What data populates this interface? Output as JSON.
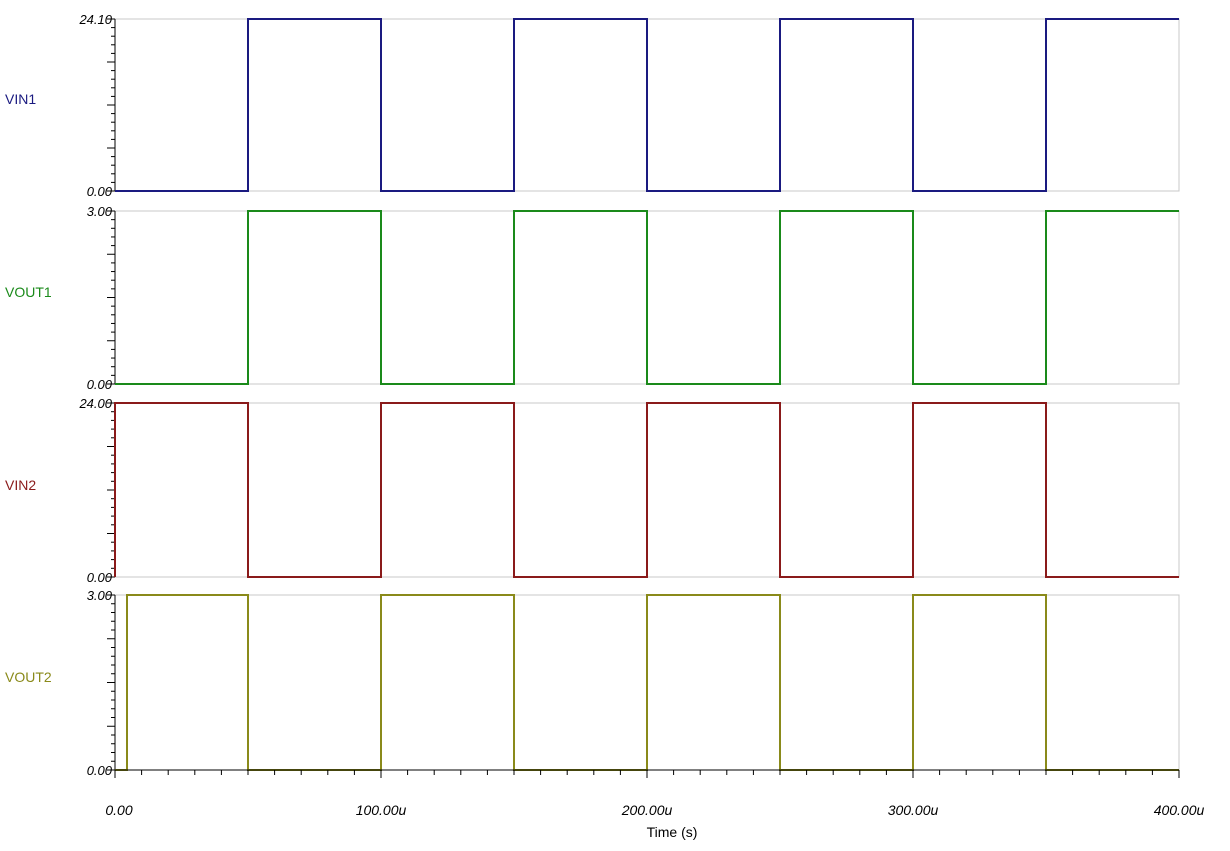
{
  "chart_data": {
    "type": "line",
    "xlabel": "Time (s)",
    "x_ticks": [
      "0.00",
      "100.00u",
      "200.00u",
      "300.00u",
      "400.00u"
    ],
    "xlim": [
      0,
      400
    ],
    "x_unit": "us",
    "series": [
      {
        "name": "VIN1",
        "color": "#1a1a80",
        "ylim": [
          0,
          24.1
        ],
        "y_ticks": [
          "24.10",
          "0.00"
        ],
        "x": [
          0,
          50,
          50,
          100,
          100,
          150,
          150,
          200,
          200,
          250,
          250,
          300,
          300,
          350,
          350,
          400
        ],
        "y": [
          0,
          0,
          24.1,
          24.1,
          0,
          0,
          24.1,
          24.1,
          0,
          0,
          24.1,
          24.1,
          0,
          0,
          24.1,
          24.1
        ]
      },
      {
        "name": "VOUT1",
        "color": "#1a8a1a",
        "ylim": [
          0,
          3
        ],
        "y_ticks": [
          "3.00",
          "0.00"
        ],
        "x": [
          0,
          50,
          50,
          100,
          100,
          150,
          150,
          200,
          200,
          250,
          250,
          300,
          300,
          350,
          350,
          400
        ],
        "y": [
          0,
          0,
          3,
          3,
          0,
          0,
          3,
          3,
          0,
          0,
          3,
          3,
          0,
          0,
          3,
          3
        ]
      },
      {
        "name": "VIN2",
        "color": "#8a1a1a",
        "ylim": [
          0,
          24
        ],
        "y_ticks": [
          "24.00",
          "0.00"
        ],
        "x": [
          0,
          0,
          50,
          50,
          100,
          100,
          150,
          150,
          200,
          200,
          250,
          250,
          300,
          300,
          350,
          350,
          400
        ],
        "y": [
          0,
          24,
          24,
          0,
          0,
          24,
          24,
          0,
          0,
          24,
          24,
          0,
          0,
          24,
          24,
          0,
          0
        ]
      },
      {
        "name": "VOUT2",
        "color": "#8a8a1a",
        "ylim": [
          0,
          3
        ],
        "y_ticks": [
          "3.00",
          "0.00"
        ],
        "x": [
          0,
          4.5,
          4.5,
          50,
          50,
          100,
          100,
          150,
          150,
          200,
          200,
          250,
          250,
          300,
          300,
          350,
          350,
          400
        ],
        "y": [
          0,
          0,
          3,
          3,
          0,
          0,
          3,
          3,
          0,
          0,
          3,
          3,
          0,
          0,
          3,
          3,
          0,
          0
        ]
      }
    ]
  }
}
